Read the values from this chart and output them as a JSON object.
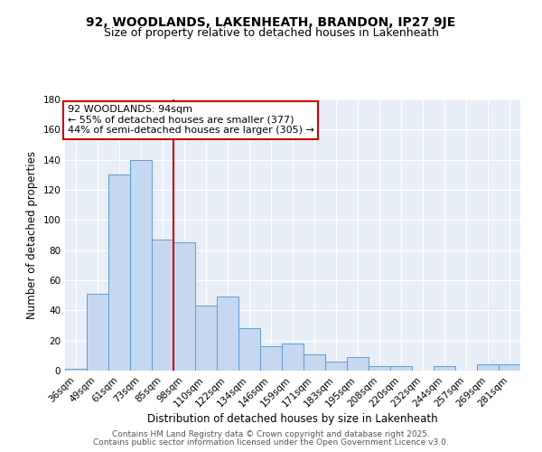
{
  "title": "92, WOODLANDS, LAKENHEATH, BRANDON, IP27 9JE",
  "subtitle": "Size of property relative to detached houses in Lakenheath",
  "xlabel": "Distribution of detached houses by size in Lakenheath",
  "ylabel": "Number of detached properties",
  "categories": [
    "36sqm",
    "49sqm",
    "61sqm",
    "73sqm",
    "85sqm",
    "98sqm",
    "110sqm",
    "122sqm",
    "134sqm",
    "146sqm",
    "159sqm",
    "171sqm",
    "183sqm",
    "195sqm",
    "208sqm",
    "220sqm",
    "232sqm",
    "244sqm",
    "257sqm",
    "269sqm",
    "281sqm"
  ],
  "values": [
    1,
    51,
    130,
    140,
    87,
    85,
    43,
    49,
    28,
    16,
    18,
    11,
    6,
    9,
    3,
    3,
    0,
    3,
    0,
    4,
    4
  ],
  "bar_color": "#c5d8f0",
  "bar_edge_color": "#5b9bd5",
  "vline_color": "#cc0000",
  "annotation_text": "92 WOODLANDS: 94sqm\n← 55% of detached houses are smaller (377)\n44% of semi-detached houses are larger (305) →",
  "annotation_box_color": "#ffffff",
  "annotation_box_edge": "#cc0000",
  "ylim": [
    0,
    180
  ],
  "yticks": [
    0,
    20,
    40,
    60,
    80,
    100,
    120,
    140,
    160,
    180
  ],
  "footer1": "Contains HM Land Registry data © Crown copyright and database right 2025.",
  "footer2": "Contains public sector information licensed under the Open Government Licence v3.0.",
  "bg_color": "#e8eef7",
  "fig_bg_color": "#ffffff",
  "title_fontsize": 10,
  "subtitle_fontsize": 9,
  "axis_label_fontsize": 8.5,
  "tick_fontsize": 7.5,
  "annotation_fontsize": 8,
  "footer_fontsize": 6.5
}
